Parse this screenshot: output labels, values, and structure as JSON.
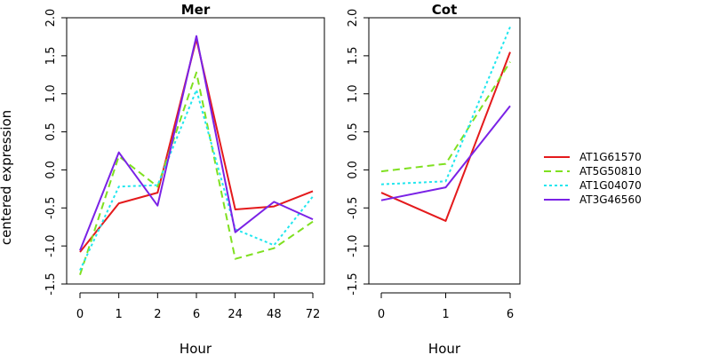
{
  "chart_data": {
    "type": "line",
    "ylabel": "centered expression",
    "legend": {
      "placement": "right",
      "entries": [
        {
          "name": "AT1G61570",
          "color": "#e41a1c",
          "dash": "solid"
        },
        {
          "name": "AT5G50810",
          "color": "#7fe020",
          "dash": "dashed"
        },
        {
          "name": "AT1G04070",
          "color": "#22e6ee",
          "dash": "dotted"
        },
        {
          "name": "AT3G46560",
          "color": "#7a22e6",
          "dash": "solid"
        }
      ]
    },
    "panels": [
      {
        "title": "Mer",
        "xlabel": "Hour",
        "categories": [
          "0",
          "1",
          "2",
          "6",
          "24",
          "48",
          "72"
        ],
        "ylim": [
          -1.5,
          2.0
        ],
        "yticks": [
          "-1.5",
          "-1.0",
          "-0.5",
          "0.0",
          "0.5",
          "1.0",
          "1.5",
          "2.0"
        ],
        "series": [
          {
            "name": "AT1G61570",
            "values": [
              -1.08,
              -0.44,
              -0.3,
              1.72,
              -0.52,
              -0.48,
              -0.28
            ]
          },
          {
            "name": "AT5G50810",
            "values": [
              -1.38,
              0.18,
              -0.22,
              1.28,
              -1.17,
              -1.03,
              -0.68
            ]
          },
          {
            "name": "AT1G04070",
            "values": [
              -1.32,
              -0.22,
              -0.2,
              1.05,
              -0.78,
              -0.99,
              -0.35
            ]
          },
          {
            "name": "AT3G46560",
            "values": [
              -1.06,
              0.23,
              -0.47,
              1.76,
              -0.82,
              -0.42,
              -0.65
            ]
          }
        ]
      },
      {
        "title": "Cot",
        "xlabel": "Hour",
        "categories": [
          "0",
          "1",
          "6"
        ],
        "ylim": [
          -1.5,
          2.0
        ],
        "yticks": [
          "-1.5",
          "-1.0",
          "-0.5",
          "0.0",
          "0.5",
          "1.0",
          "1.5",
          "2.0"
        ],
        "series": [
          {
            "name": "AT1G61570",
            "values": [
              -0.3,
              -0.67,
              1.55
            ]
          },
          {
            "name": "AT5G50810",
            "values": [
              -0.02,
              0.08,
              1.42
            ]
          },
          {
            "name": "AT1G04070",
            "values": [
              -0.19,
              -0.15,
              1.88
            ]
          },
          {
            "name": "AT3G46560",
            "values": [
              -0.4,
              -0.23,
              0.84
            ]
          }
        ]
      }
    ]
  }
}
